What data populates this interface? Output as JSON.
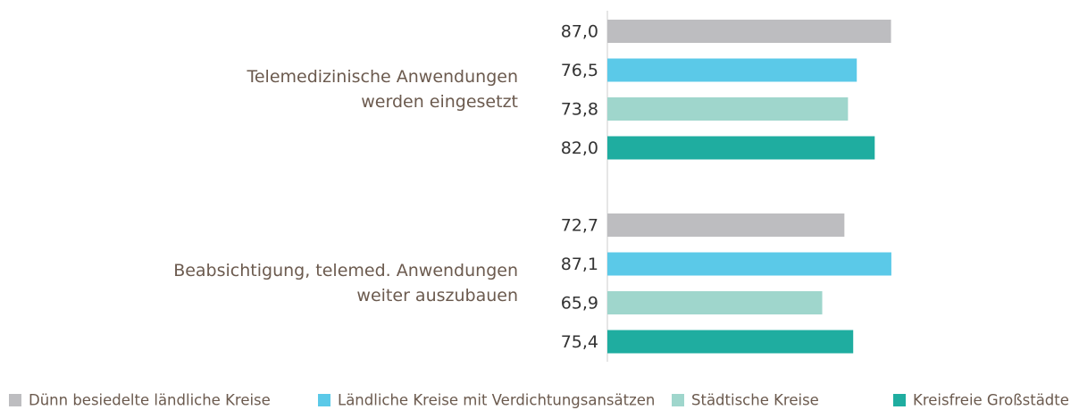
{
  "chart_data": {
    "type": "hbar",
    "categories": [
      "Telemedizinische Anwendungen\nwerden eingesetzt",
      "Beabsichtigung, telemed. Anwendungen\nweiter auszubauen"
    ],
    "series": [
      {
        "name": "Dünn besiedelte ländliche Kreise",
        "color": "#bdbdc0",
        "values": [
          87.0,
          72.7
        ],
        "value_labels": [
          "87,0",
          "72,7"
        ]
      },
      {
        "name": "Ländliche Kreise mit Verdichtungsansätzen",
        "color": "#5bc9e8",
        "values": [
          76.5,
          87.1
        ],
        "value_labels": [
          "76,5",
          "87,1"
        ]
      },
      {
        "name": "Städtische Kreise",
        "color": "#9fd6cc",
        "values": [
          73.8,
          65.9
        ],
        "value_labels": [
          "73,8",
          "65,9"
        ]
      },
      {
        "name": "Kreisfreie Großstädte",
        "color": "#1fada0",
        "values": [
          82.0,
          75.4
        ],
        "value_labels": [
          "82,0",
          "75,4"
        ]
      }
    ],
    "xlim": [
      0,
      100
    ]
  }
}
